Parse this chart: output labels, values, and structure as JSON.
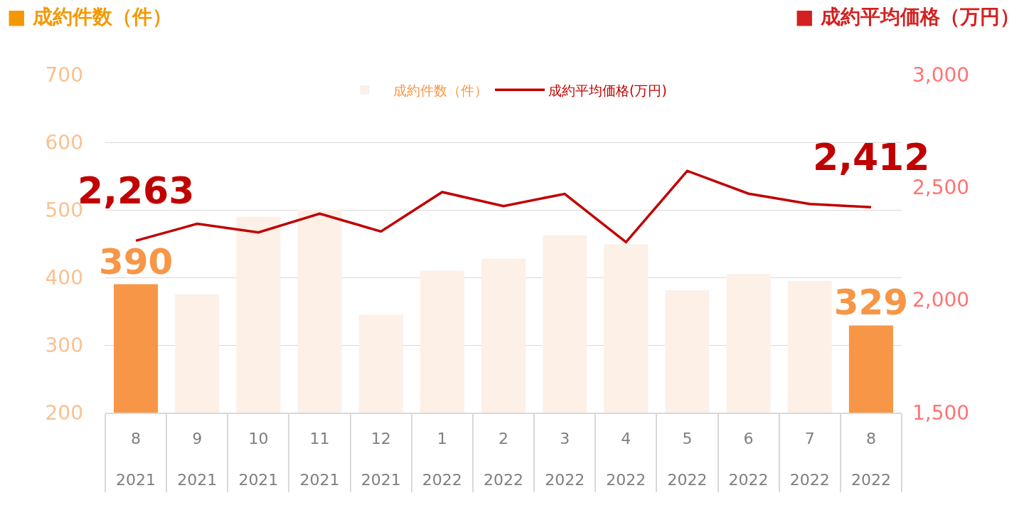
{
  "chart_data": {
    "type": "bar",
    "ylabel": "■ 成約件数（件）",
    "y2label": "■ 成約平均価格（万円）",
    "categories": [
      "8\n2021",
      "9\n2021",
      "10\n2021",
      "11\n2021",
      "12\n2021",
      "1\n2022",
      "2\n2022",
      "3\n2022",
      "4\n2022",
      "5\n2022",
      "6\n2022",
      "7\n2022",
      "8\n2022"
    ],
    "series": [
      {
        "name": "成約件数（件）",
        "color": "#fcf0e7",
        "colors": [
          "#f79646",
          "#fcf0e7",
          "#fcf0e7",
          "#fcf0e7",
          "#fcf0e7",
          "#fcf0e7",
          "#fcf0e7",
          "#fcf0e7",
          "#fcf0e7",
          "#fcf0e7",
          "#fcf0e7",
          "#fcf0e7",
          "#f79646"
        ],
        "values": [
          390,
          375,
          490,
          500,
          345,
          410,
          428,
          462,
          449,
          381,
          405,
          395,
          329
        ],
        "value_labels": [
          "390",
          null,
          null,
          null,
          null,
          null,
          null,
          null,
          null,
          null,
          null,
          null,
          "329"
        ]
      },
      {
        "name": "成約平均価格(万円)",
        "type": "line",
        "axis": "y2",
        "color": "#c00000",
        "values": [
          2263,
          2338,
          2300,
          2383,
          2304,
          2479,
          2417,
          2471,
          2257,
          2573,
          2472,
          2426,
          2412
        ],
        "value_labels": [
          "2,263",
          null,
          null,
          null,
          null,
          null,
          null,
          null,
          null,
          null,
          null,
          null,
          "2,412"
        ]
      }
    ],
    "ylim": [
      200,
      700
    ],
    "yticks": [
      200,
      300,
      400,
      500,
      600,
      700
    ],
    "y2lim": [
      1500,
      3000
    ],
    "y2ticks": [
      {
        "value": 1500,
        "label": "1,500"
      },
      {
        "value": 2000,
        "label": "2,000"
      },
      {
        "value": 2500,
        "label": "2,500"
      },
      {
        "value": 3000,
        "label": "3,000"
      }
    ],
    "grid": "y",
    "legend": "top"
  }
}
